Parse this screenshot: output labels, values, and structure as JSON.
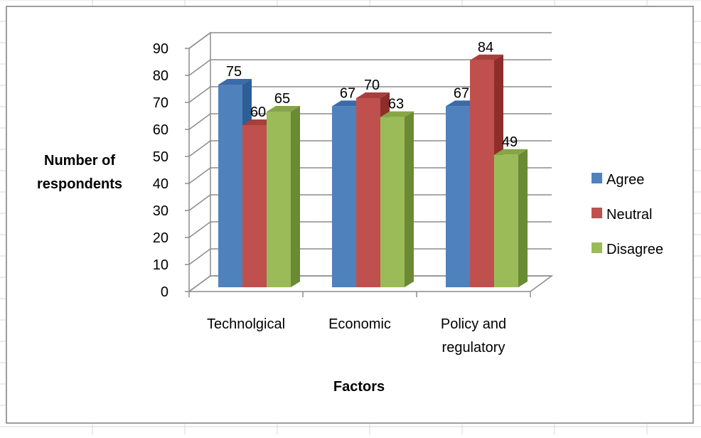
{
  "chart_data": {
    "type": "bar",
    "title": "",
    "xlabel": "Factors",
    "ylabel": [
      "Number of",
      "respondents"
    ],
    "categories": [
      [
        "Technolgical"
      ],
      [
        "Economic"
      ],
      [
        "Policy and",
        "regulatory"
      ]
    ],
    "series": [
      {
        "name": "Agree",
        "values": [
          75,
          67,
          67
        ],
        "color": "#4F81BD",
        "side_color": "#2E5E96",
        "top_color": "#3A6AA8"
      },
      {
        "name": "Neutral",
        "values": [
          60,
          70,
          84
        ],
        "color": "#C0504D",
        "side_color": "#8E2E2B",
        "top_color": "#A73F3C"
      },
      {
        "name": "Disagree",
        "values": [
          65,
          63,
          49
        ],
        "color": "#9BBB59",
        "side_color": "#6A8A33",
        "top_color": "#86A646"
      }
    ],
    "ylim": [
      0,
      90
    ],
    "yticks": [
      0,
      10,
      20,
      30,
      40,
      50,
      60,
      70,
      80,
      90
    ],
    "grid": true,
    "legend": "right",
    "data_labels": true,
    "style": "3d-clustered-column"
  },
  "colors": {
    "gridline": "#8C8C8C",
    "sheet_grid": "#D9D9D9",
    "chart_border": "#7F7F7F",
    "text": "#000000"
  }
}
